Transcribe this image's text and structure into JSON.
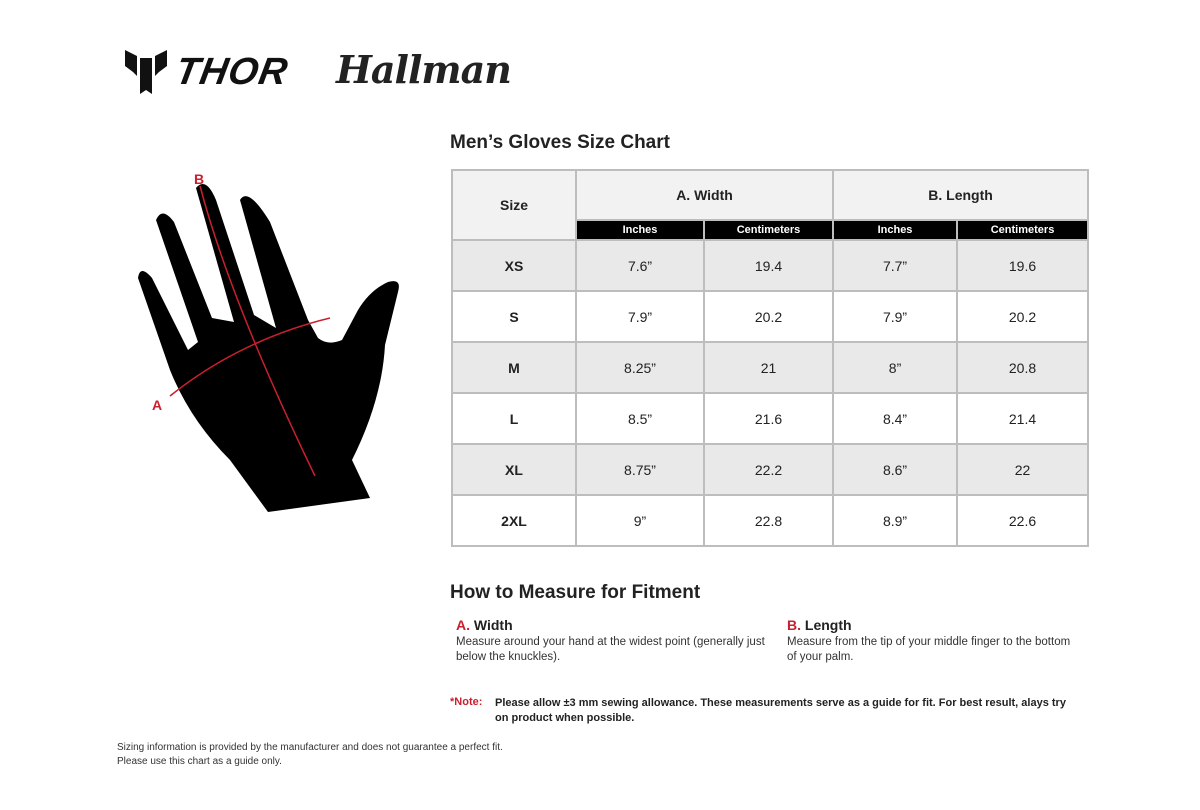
{
  "brands": {
    "thor": "THOR",
    "hallman": "Hallman"
  },
  "chart_title": "Men’s Gloves Size Chart",
  "diagram": {
    "label_a": "A",
    "label_b": "B",
    "accent": "#c8202e"
  },
  "table": {
    "size_header": "Size",
    "width_header": "A. Width",
    "length_header": "B. Length",
    "sub_headers": [
      "Inches",
      "Centimeters",
      "Inches",
      "Centimeters"
    ],
    "rows": [
      {
        "size": "XS",
        "w_in": "7.6”",
        "w_cm": "19.4",
        "l_in": "7.7”",
        "l_cm": "19.6"
      },
      {
        "size": "S",
        "w_in": "7.9”",
        "w_cm": "20.2",
        "l_in": "7.9”",
        "l_cm": "20.2"
      },
      {
        "size": "M",
        "w_in": "8.25”",
        "w_cm": "21",
        "l_in": "8”",
        "l_cm": "20.8"
      },
      {
        "size": "L",
        "w_in": "8.5”",
        "w_cm": "21.6",
        "l_in": "8.4”",
        "l_cm": "21.4"
      },
      {
        "size": "XL",
        "w_in": "8.75”",
        "w_cm": "22.2",
        "l_in": "8.6”",
        "l_cm": "22"
      },
      {
        "size": "2XL",
        "w_in": "9”",
        "w_cm": "22.8",
        "l_in": "8.9”",
        "l_cm": "22.6"
      }
    ]
  },
  "how_to": {
    "title": "How to Measure for Fitment",
    "width": {
      "letter": "A.",
      "label": "Width",
      "text": "Measure around your hand at the widest point (generally just below the knuckles)."
    },
    "length": {
      "letter": "B.",
      "label": "Length",
      "text": "Measure from the tip of your middle finger to the bottom of your palm."
    }
  },
  "note": {
    "label": "*Note:",
    "text": "Please allow ±3 mm sewing allowance. These measurements serve as a guide for fit. For best result, alays try on product when possible."
  },
  "disclaimer": [
    "Sizing information is provided by the manufacturer and does not guarantee a perfect fit.",
    "Please use this chart as a guide only."
  ]
}
